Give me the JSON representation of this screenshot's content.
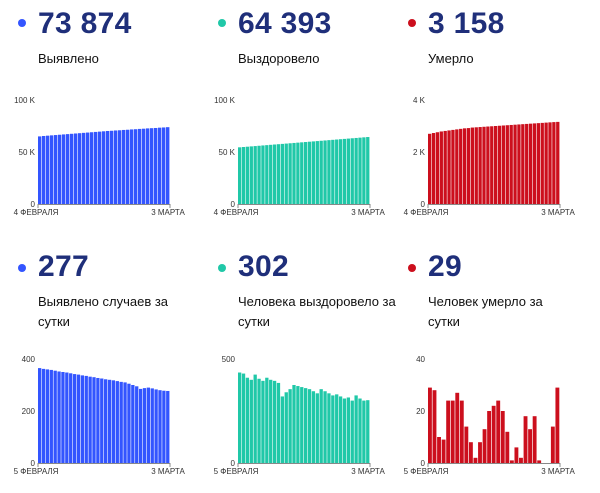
{
  "panels": [
    {
      "value": "73 874",
      "label": "Выявлено",
      "color": "#3355ff"
    },
    {
      "value": "64 393",
      "label": "Выздоровело",
      "color": "#20c8a8"
    },
    {
      "value": "3 158",
      "label": "Умерло",
      "color": "#cc0f1d"
    },
    {
      "value": "277",
      "label": "Выявлено случаев за сутки",
      "color": "#3355ff"
    },
    {
      "value": "302",
      "label": "Человека выздоровело за сутки",
      "color": "#20c8a8"
    },
    {
      "value": "29",
      "label": "Человек умерло за сутки",
      "color": "#cc0f1d"
    }
  ],
  "chart_data": [
    {
      "type": "bar",
      "color": "#3355ff",
      "ylim": [
        0,
        100000
      ],
      "yticks": [
        0,
        50000,
        100000
      ],
      "yticklabels": [
        "0",
        "50 K",
        "100 K"
      ],
      "xticklabels": [
        "4 ФЕВРАЛЯ",
        "3 МАРТА"
      ],
      "values": [
        65000,
        65400,
        65700,
        66000,
        66300,
        66600,
        66900,
        67200,
        67500,
        67800,
        68100,
        68400,
        68700,
        69000,
        69300,
        69600,
        69900,
        70200,
        70400,
        70700,
        70900,
        71200,
        71400,
        71700,
        71900,
        72200,
        72400,
        72700,
        72900,
        73100,
        73400,
        73600,
        73874
      ]
    },
    {
      "type": "bar",
      "color": "#20c8a8",
      "ylim": [
        0,
        100000
      ],
      "yticks": [
        0,
        50000,
        100000
      ],
      "yticklabels": [
        "0",
        "50 K",
        "100 K"
      ],
      "xticklabels": [
        "4 ФЕВРАЛЯ",
        "3 МАРТА"
      ],
      "values": [
        54500,
        54800,
        55100,
        55400,
        55700,
        56000,
        56300,
        56600,
        56900,
        57200,
        57500,
        57800,
        58100,
        58400,
        58700,
        59000,
        59300,
        59600,
        59900,
        60200,
        60500,
        60800,
        61100,
        61400,
        61700,
        62000,
        62300,
        62600,
        62900,
        63200,
        63500,
        63800,
        64100,
        64393
      ]
    },
    {
      "type": "bar",
      "color": "#cc0f1d",
      "ylim": [
        0,
        4000
      ],
      "yticks": [
        0,
        2000,
        4000
      ],
      "yticklabels": [
        "0",
        "2 K",
        "4 K"
      ],
      "xticklabels": [
        "4 ФЕВРАЛЯ",
        "3 МАРТА"
      ],
      "values": [
        2700,
        2730,
        2760,
        2790,
        2810,
        2830,
        2850,
        2870,
        2890,
        2910,
        2920,
        2940,
        2950,
        2960,
        2970,
        2980,
        2990,
        3000,
        3010,
        3020,
        3030,
        3040,
        3050,
        3060,
        3070,
        3080,
        3090,
        3100,
        3110,
        3120,
        3130,
        3140,
        3150,
        3158
      ]
    },
    {
      "type": "bar",
      "color": "#3355ff",
      "ylim": [
        0,
        400
      ],
      "yticks": [
        0,
        200,
        400
      ],
      "yticklabels": [
        "0",
        "200",
        "400"
      ],
      "xticklabels": [
        "5 ФЕВРАЛЯ",
        "3 МАРТА"
      ],
      "values": [
        365,
        362,
        360,
        358,
        355,
        352,
        350,
        348,
        345,
        342,
        340,
        337,
        335,
        332,
        330,
        327,
        325,
        322,
        320,
        318,
        315,
        312,
        310,
        305,
        300,
        295,
        285,
        288,
        290,
        287,
        283,
        280,
        278,
        277
      ]
    },
    {
      "type": "bar",
      "color": "#20c8a8",
      "ylim": [
        0,
        500
      ],
      "yticks": [
        0,
        500
      ],
      "yticklabels": [
        "0",
        "500"
      ],
      "xticklabels": [
        "5 ФЕВРАЛЯ",
        "3 МАРТА"
      ],
      "values": [
        435,
        430,
        410,
        400,
        425,
        405,
        395,
        410,
        400,
        395,
        385,
        320,
        340,
        355,
        375,
        370,
        365,
        360,
        355,
        345,
        335,
        355,
        345,
        335,
        325,
        330,
        320,
        310,
        315,
        300,
        325,
        310,
        300,
        302
      ]
    },
    {
      "type": "bar",
      "color": "#cc0f1d",
      "ylim": [
        0,
        40
      ],
      "yticks": [
        0,
        20,
        40
      ],
      "yticklabels": [
        "0",
        "20",
        "40"
      ],
      "xticklabels": [
        "5 ФЕВРАЛЯ",
        "3 МАРТА"
      ],
      "values": [
        29,
        28,
        10,
        9,
        24,
        24,
        27,
        24,
        14,
        8,
        2,
        8,
        13,
        20,
        22,
        24,
        20,
        12,
        1,
        6,
        2,
        18,
        13,
        18,
        1,
        0,
        0,
        14,
        29
      ]
    }
  ]
}
